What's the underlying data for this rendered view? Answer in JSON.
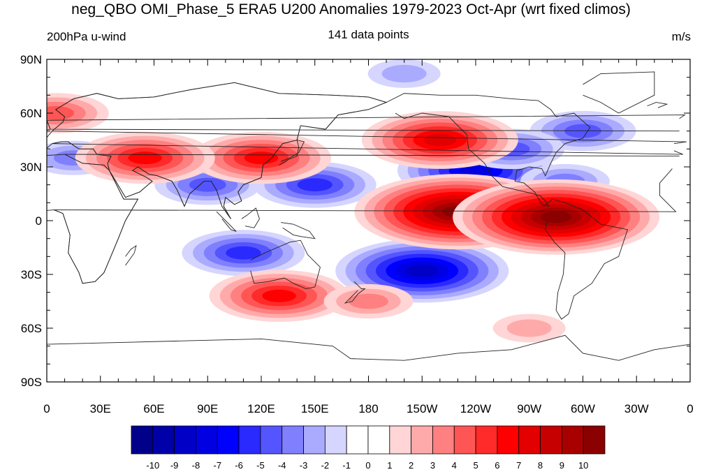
{
  "title": "neg_QBO OMI_Phase_5 ERA5 U200 Anomalies 1979-2023 Oct-Apr (wrt fixed climos)",
  "left_subtitle": "200hPa u-wind",
  "center_subtitle": "141 data points",
  "right_subtitle": "m/s",
  "map": {
    "projection": "cylindrical-equidistant",
    "center_longitude": 180,
    "lon_ticks": [
      "0",
      "30E",
      "60E",
      "90E",
      "120E",
      "150E",
      "180",
      "150W",
      "120W",
      "90W",
      "60W",
      "30W",
      "0"
    ],
    "lat_ticks": [
      "90N",
      "60N",
      "30N",
      "0",
      "30S",
      "60S",
      "90S"
    ]
  },
  "colorbar": {
    "labels": [
      "-10",
      "-9",
      "-8",
      "-7",
      "-6",
      "-5",
      "-4",
      "-3",
      "-2",
      "-1",
      "0",
      "1",
      "2",
      "3",
      "4",
      "5",
      "6",
      "7",
      "8",
      "9",
      "10"
    ],
    "colors": [
      "#00008b",
      "#0000a8",
      "#0000c6",
      "#0000e2",
      "#0000ff",
      "#2a2aff",
      "#5555ff",
      "#8080ff",
      "#aaaaff",
      "#d5d5ff",
      "#ffffff",
      "#ffffff",
      "#ffd5d5",
      "#ffaaaa",
      "#ff8080",
      "#ff5555",
      "#ff2a2a",
      "#ff0000",
      "#e20000",
      "#c60000",
      "#a80000",
      "#8b0000"
    ]
  },
  "anomaly_centers": [
    {
      "lon": 240,
      "lat": 28,
      "value": -7
    },
    {
      "lon": 150,
      "lat": 20,
      "value": -5
    },
    {
      "lon": 90,
      "lat": 20,
      "value": -4
    },
    {
      "lon": 110,
      "lat": -18,
      "value": -5
    },
    {
      "lon": 210,
      "lat": -28,
      "value": -8
    },
    {
      "lon": 300,
      "lat": 50,
      "value": -4
    },
    {
      "lon": 290,
      "lat": 22,
      "value": -3
    },
    {
      "lon": 260,
      "lat": 40,
      "value": -4
    },
    {
      "lon": 15,
      "lat": 35,
      "value": -3
    },
    {
      "lon": 200,
      "lat": 82,
      "value": -2
    },
    {
      "lon": 230,
      "lat": 5,
      "value": 10
    },
    {
      "lon": 285,
      "lat": 2,
      "value": 10
    },
    {
      "lon": 220,
      "lat": 45,
      "value": 7
    },
    {
      "lon": 120,
      "lat": 35,
      "value": 6
    },
    {
      "lon": 55,
      "lat": 35,
      "value": 6
    },
    {
      "lon": 130,
      "lat": -42,
      "value": 6
    },
    {
      "lon": 180,
      "lat": -45,
      "value": 3
    },
    {
      "lon": 5,
      "lat": 60,
      "value": 4
    },
    {
      "lon": 270,
      "lat": -60,
      "value": 2
    }
  ]
}
